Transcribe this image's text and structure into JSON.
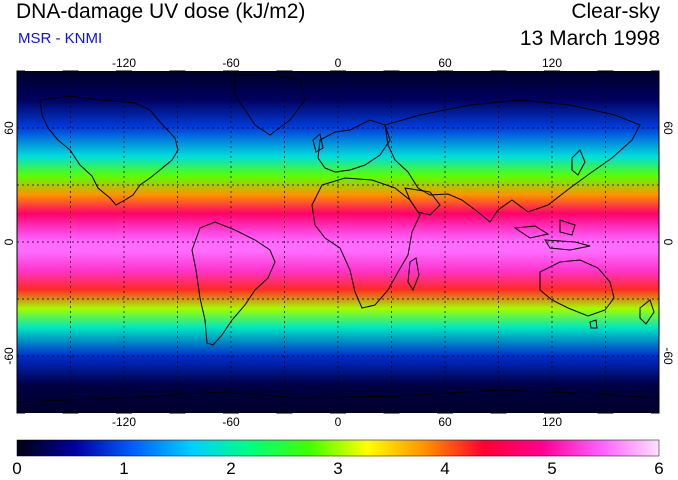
{
  "header": {
    "title": "DNA-damage UV dose (kJ/m2)",
    "subtitle": "MSR - KNMI",
    "condition": "Clear-sky",
    "date": "13 March 1998"
  },
  "map": {
    "projection": "equirectangular",
    "lon_range": [
      -180,
      180
    ],
    "lat_range": [
      -90,
      90
    ],
    "lon_ticks": [
      "-120",
      "-60",
      "0",
      "60",
      "120"
    ],
    "lon_tick_values": [
      -120,
      -60,
      0,
      60,
      120
    ],
    "lat_ticks": [
      "60",
      "0",
      "-60"
    ],
    "lat_tick_values": [
      60,
      0,
      -60
    ],
    "gridlines": "dashed every 30 degrees",
    "coastlines": true
  },
  "colorbar": {
    "labels": [
      "0",
      "1",
      "2",
      "3",
      "4",
      "5",
      "6"
    ],
    "min": 0,
    "max": 6,
    "colors": [
      "#000010",
      "#0000a0",
      "#0060ff",
      "#00d0ff",
      "#00ff80",
      "#40ff00",
      "#ffff00",
      "#ff9000",
      "#ff0030",
      "#ff0090",
      "#ff60ff",
      "#ffe0ff"
    ]
  },
  "chart_data": {
    "type": "heatmap",
    "title": "DNA-damage UV dose (kJ/m2)",
    "xlabel": "",
    "ylabel": "",
    "x_range": [
      -180,
      180
    ],
    "y_range": [
      -90,
      90
    ],
    "value_range": [
      0,
      6
    ],
    "zonal_profile_lat": [
      90,
      75,
      60,
      45,
      35,
      25,
      15,
      5,
      0,
      -5,
      -15,
      -25,
      -35,
      -45,
      -60,
      -75,
      -90
    ],
    "zonal_profile_dose": [
      0.1,
      0.3,
      0.9,
      1.8,
      2.8,
      3.8,
      4.7,
      5.3,
      5.5,
      5.5,
      5.2,
      4.2,
      3.0,
      1.9,
      0.8,
      0.2,
      0.1
    ]
  }
}
